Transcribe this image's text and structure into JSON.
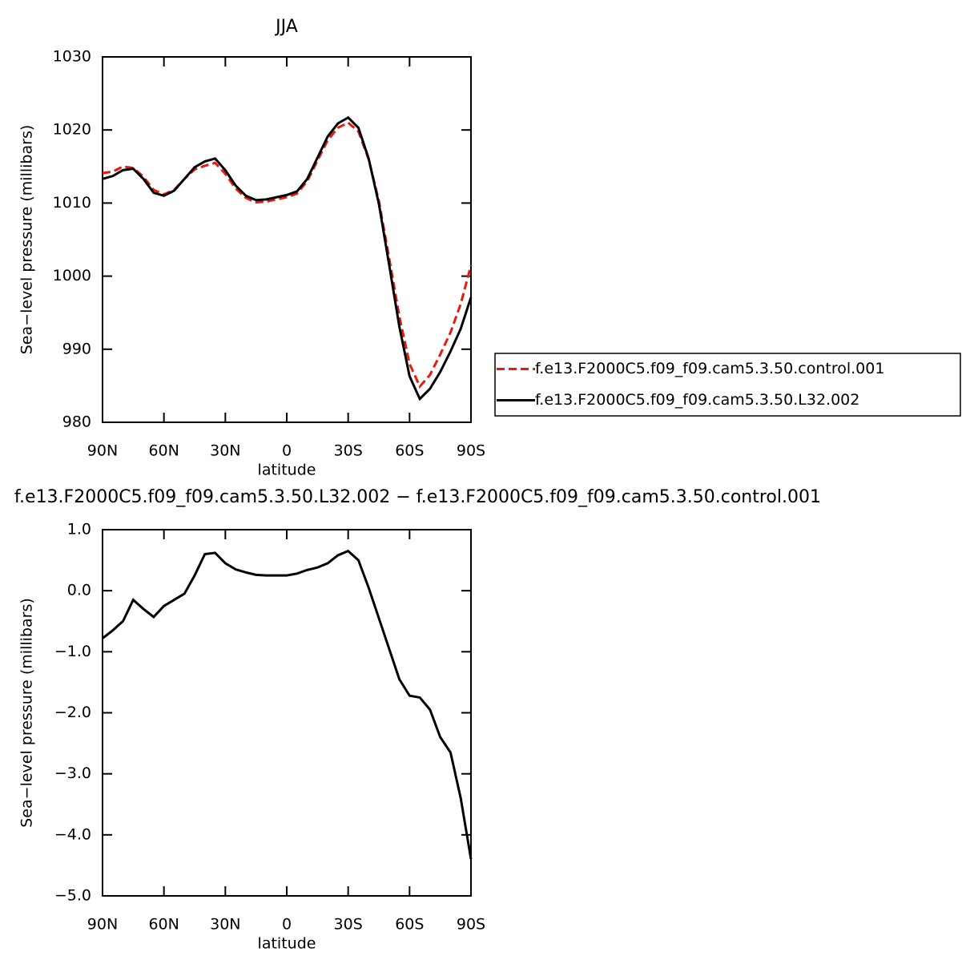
{
  "chart_data": [
    {
      "type": "line",
      "title": "JJA",
      "x_label": "latitude",
      "y_label": "Sea−level pressure (millibars)",
      "x": [
        90,
        85,
        80,
        75,
        70,
        65,
        60,
        55,
        50,
        45,
        40,
        35,
        30,
        25,
        20,
        15,
        10,
        5,
        0,
        -5,
        -10,
        -15,
        -20,
        -25,
        -30,
        -35,
        -40,
        -45,
        -50,
        -55,
        -60,
        -65,
        -70,
        -75,
        -80,
        -85,
        -90
      ],
      "series": [
        {
          "name": "f.e13.F2000C5.f09_f09.cam5.3.50.control.001",
          "color": "#e8190f",
          "dash": true,
          "values": [
            1014.1,
            1014.3,
            1015.0,
            1014.8,
            1013.6,
            1011.8,
            1011.2,
            1011.8,
            1013.3,
            1014.6,
            1015.1,
            1015.5,
            1014.0,
            1012.0,
            1010.7,
            1010.1,
            1010.2,
            1010.5,
            1010.8,
            1011.3,
            1013.0,
            1015.8,
            1018.6,
            1020.3,
            1021.0,
            1019.8,
            1016.0,
            1010.3,
            1002.5,
            994.5,
            988.0,
            984.9,
            986.5,
            989.3,
            992.3,
            996.2,
            1001.5
          ]
        },
        {
          "name": "f.e13.F2000C5.f09_f09.cam5.3.50.L32.002",
          "color": "#000000",
          "dash": false,
          "values": [
            1013.3,
            1013.7,
            1014.5,
            1014.7,
            1013.3,
            1011.4,
            1011.0,
            1011.7,
            1013.3,
            1014.9,
            1015.7,
            1016.1,
            1014.5,
            1012.4,
            1011.0,
            1010.4,
            1010.5,
            1010.8,
            1011.1,
            1011.6,
            1013.3,
            1016.2,
            1019.1,
            1020.9,
            1021.7,
            1020.3,
            1016.1,
            1009.9,
            1001.6,
            993.1,
            986.3,
            983.2,
            984.6,
            986.9,
            989.7,
            992.8,
            997.1
          ]
        }
      ],
      "xlim": [
        90,
        -90
      ],
      "xticks": [
        {
          "value": 90,
          "label": "90N"
        },
        {
          "value": 60,
          "label": "60N"
        },
        {
          "value": 30,
          "label": "30N"
        },
        0,
        {
          "value": -30,
          "label": "30S"
        },
        {
          "value": -60,
          "label": "60S"
        },
        {
          "value": -90,
          "label": "90S"
        }
      ],
      "ylim": [
        980,
        1030
      ],
      "yticks": [
        980,
        990,
        1000,
        1010,
        1020,
        1030
      ],
      "legend": "right"
    },
    {
      "type": "line",
      "title": "f.e13.F2000C5.f09_f09.cam5.3.50.L32.002 − f.e13.F2000C5.f09_f09.cam5.3.50.control.001",
      "x_label": "latitude",
      "y_label": "Sea−level pressure (millibars)",
      "x": [
        90,
        85,
        80,
        75,
        70,
        65,
        60,
        55,
        50,
        45,
        40,
        35,
        30,
        25,
        20,
        15,
        10,
        5,
        0,
        -5,
        -10,
        -15,
        -20,
        -25,
        -30,
        -35,
        -40,
        -45,
        -50,
        -55,
        -60,
        -65,
        -70,
        -75,
        -80,
        -85,
        -90
      ],
      "series": [
        {
          "color": "#000000",
          "dash": false,
          "values": [
            -0.78,
            -0.65,
            -0.5,
            -0.15,
            -0.3,
            -0.43,
            -0.25,
            -0.15,
            -0.05,
            0.25,
            0.6,
            0.62,
            0.45,
            0.35,
            0.3,
            0.26,
            0.25,
            0.25,
            0.25,
            0.28,
            0.34,
            0.38,
            0.45,
            0.58,
            0.65,
            0.5,
            0.05,
            -0.45,
            -0.95,
            -1.45,
            -1.72,
            -1.75,
            -1.95,
            -2.4,
            -2.65,
            -3.4,
            -4.4
          ]
        }
      ],
      "xlim": [
        90,
        -90
      ],
      "xticks": [
        {
          "value": 90,
          "label": "90N"
        },
        {
          "value": 60,
          "label": "60N"
        },
        {
          "value": 30,
          "label": "30N"
        },
        0,
        {
          "value": -30,
          "label": "30S"
        },
        {
          "value": -60,
          "label": "60S"
        },
        {
          "value": -90,
          "label": "90S"
        }
      ],
      "ylim": [
        -5,
        1
      ],
      "yticks": [
        {
          "value": -5,
          "label": "−5.0"
        },
        {
          "value": -4,
          "label": "−4.0"
        },
        {
          "value": -3,
          "label": "−3.0"
        },
        {
          "value": -2,
          "label": "−2.0"
        },
        {
          "value": -1,
          "label": "−1.0"
        },
        {
          "value": 0,
          "label": "0.0"
        },
        {
          "value": 1,
          "label": "1.0"
        }
      ]
    }
  ]
}
